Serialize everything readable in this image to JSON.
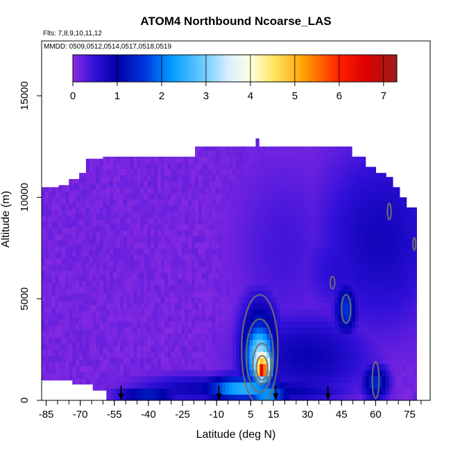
{
  "chart_data": {
    "type": "heatmap",
    "title": "ATOM4 Northbound Ncoarse_LAS",
    "annotations": {
      "flights": "Flts: 7,8,9,10,11,12",
      "dates": "MMDD: 0509,0512,0514,0517,0518,0519"
    },
    "xlabel": "Latitude (deg N)",
    "ylabel": "Altitude (m)",
    "xlim": [
      -87,
      84
    ],
    "ylim": [
      0,
      17700
    ],
    "x_ticks": [
      -85,
      -70,
      -55,
      -40,
      -25,
      -10,
      5,
      15,
      30,
      45,
      60,
      75
    ],
    "y_ticks": [
      0,
      5000,
      10000,
      15000
    ],
    "x_minor_step": 5,
    "colorbar": {
      "min": 0,
      "max": 7.3,
      "ticks": [
        0,
        1,
        2,
        3,
        4,
        5,
        6,
        7
      ],
      "stops": [
        {
          "v": 0,
          "color": "#8a2be2"
        },
        {
          "v": 0.5,
          "color": "#3010d8"
        },
        {
          "v": 1.0,
          "color": "#0000a8"
        },
        {
          "v": 1.6,
          "color": "#0033dd"
        },
        {
          "v": 2.2,
          "color": "#0099ff"
        },
        {
          "v": 2.9,
          "color": "#66c8ff"
        },
        {
          "v": 3.5,
          "color": "#d8eeff"
        },
        {
          "v": 4.0,
          "color": "#ffffe0"
        },
        {
          "v": 4.5,
          "color": "#ffe866"
        },
        {
          "v": 5.2,
          "color": "#ffa000"
        },
        {
          "v": 6.0,
          "color": "#ff2000"
        },
        {
          "v": 6.6,
          "color": "#dd0000"
        },
        {
          "v": 7.3,
          "color": "#a01c1c"
        }
      ]
    },
    "background_value": 0.12,
    "top_envelope": [
      {
        "lat_min": -87,
        "lat_max": -83,
        "alt_top": 10500
      },
      {
        "lat_min": -83,
        "lat_max": -79,
        "alt_top": 10500
      },
      {
        "lat_min": -79,
        "lat_max": -75,
        "alt_top": 10600
      },
      {
        "lat_min": -75,
        "lat_max": -71,
        "alt_top": 10900
      },
      {
        "lat_min": -71,
        "lat_max": -67,
        "alt_top": 11200
      },
      {
        "lat_min": -67,
        "lat_max": -60,
        "alt_top": 11900
      },
      {
        "lat_min": -60,
        "lat_max": -20,
        "alt_top": 12000
      },
      {
        "lat_min": -20,
        "lat_max": 50,
        "alt_top": 12500
      },
      {
        "lat_min": 50,
        "lat_max": 55,
        "alt_top": 12000
      },
      {
        "lat_min": 55,
        "lat_max": 60,
        "alt_top": 11500
      },
      {
        "lat_min": 60,
        "lat_max": 65,
        "alt_top": 11200
      },
      {
        "lat_min": 65,
        "lat_max": 68,
        "alt_top": 11000
      },
      {
        "lat_min": 68,
        "lat_max": 71,
        "alt_top": 10500
      },
      {
        "lat_min": 71,
        "lat_max": 74,
        "alt_top": 10000
      },
      {
        "lat_min": 74,
        "lat_max": 78,
        "alt_top": 9500
      }
    ],
    "bottom_envelope": [
      {
        "lat_min": -87,
        "lat_max": -74,
        "alt_bottom": 1000
      },
      {
        "lat_min": -74,
        "lat_max": -64,
        "alt_bottom": 800
      },
      {
        "lat_min": -64,
        "lat_max": -58,
        "alt_bottom": 500
      },
      {
        "lat_min": -58,
        "lat_max": 78,
        "alt_bottom": 0
      }
    ],
    "peak_spike": {
      "lat": 8,
      "alt": 12900,
      "value": 0.2
    },
    "blobs": [
      {
        "lat": 10,
        "alt": 1500,
        "lat_width": 3,
        "alt_width": 500,
        "value": 7.1
      },
      {
        "lat": 10,
        "alt": 1800,
        "lat_width": 5,
        "alt_width": 1000,
        "value": 5.0
      },
      {
        "lat": 9,
        "alt": 2200,
        "lat_width": 7,
        "alt_width": 1700,
        "value": 3.3
      },
      {
        "lat": 9,
        "alt": 2400,
        "lat_width": 9,
        "alt_width": 2600,
        "value": 1.8
      },
      {
        "lat": 2,
        "alt": 600,
        "lat_width": 18,
        "alt_width": 600,
        "value": 2.6
      },
      {
        "lat": 12,
        "alt": 300,
        "lat_width": 10,
        "alt_width": 400,
        "value": 2.5
      },
      {
        "lat": -40,
        "alt": 300,
        "lat_width": 14,
        "alt_width": 300,
        "value": 1.6
      },
      {
        "lat": -17,
        "alt": 600,
        "lat_width": 30,
        "alt_width": 700,
        "value": 0.9
      },
      {
        "lat": 30,
        "alt": 2200,
        "lat_width": 30,
        "alt_width": 2200,
        "value": 0.9
      },
      {
        "lat": 20,
        "alt": 500,
        "lat_width": 30,
        "alt_width": 600,
        "value": 1.0
      },
      {
        "lat": 47,
        "alt": 4500,
        "lat_width": 5,
        "alt_width": 1300,
        "value": 1.6
      },
      {
        "lat": 60,
        "alt": 900,
        "lat_width": 6,
        "alt_width": 900,
        "value": 1.5
      },
      {
        "lat": 62,
        "alt": 8000,
        "lat_width": 30,
        "alt_width": 5000,
        "value": 0.8
      },
      {
        "lat": 45,
        "alt": 6500,
        "lat_width": 20,
        "alt_width": 2500,
        "value": 0.6
      },
      {
        "lat": 20,
        "alt": 7500,
        "lat_width": 25,
        "alt_width": 5000,
        "value": 0.4
      }
    ],
    "contours": [
      {
        "lat": 10,
        "alt": 1600,
        "rlat": 2.5,
        "ralt": 600,
        "level": 6
      },
      {
        "lat": 10,
        "alt": 1800,
        "rlat": 4,
        "ralt": 1000,
        "level": 4
      },
      {
        "lat": 9,
        "alt": 2200,
        "rlat": 6,
        "ralt": 1800,
        "level": 2
      },
      {
        "lat": 9,
        "alt": 2500,
        "rlat": 8,
        "ralt": 2700,
        "level": 1
      },
      {
        "lat": 47,
        "alt": 4500,
        "rlat": 2,
        "ralt": 700,
        "level": 1
      },
      {
        "lat": 60,
        "alt": 1000,
        "rlat": 1.5,
        "ralt": 900,
        "level": 1
      },
      {
        "lat": 66,
        "alt": 9300,
        "rlat": 0.8,
        "ralt": 400,
        "level": 1
      },
      {
        "lat": 77,
        "alt": 7700,
        "rlat": 0.6,
        "ralt": 300,
        "level": 1
      },
      {
        "lat": 41,
        "alt": 5800,
        "rlat": 1,
        "ralt": 300,
        "level": 1
      }
    ],
    "arrows_lat": [
      -52,
      -9,
      16,
      39
    ]
  }
}
